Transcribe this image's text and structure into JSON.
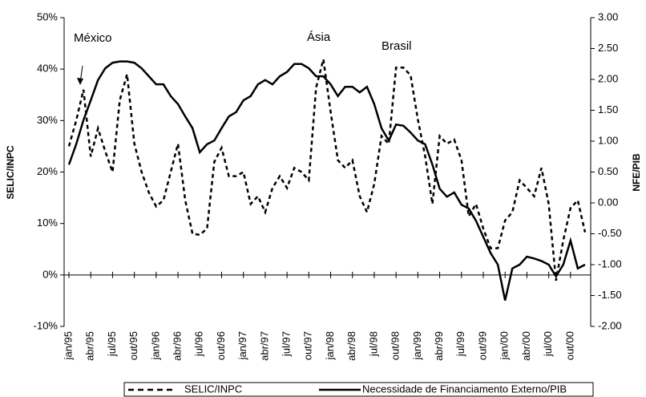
{
  "chart_data": {
    "type": "line",
    "categories": [
      "jan/95",
      null,
      null,
      "abr/95",
      null,
      null,
      "jul/95",
      null,
      null,
      "out/95",
      null,
      null,
      "jan/96",
      null,
      null,
      "abr/96",
      null,
      null,
      "jul/96",
      null,
      null,
      "out/96",
      null,
      null,
      "jan/97",
      null,
      null,
      "abr/97",
      null,
      null,
      "jul/97",
      null,
      null,
      "out/97",
      null,
      null,
      "jan/98",
      null,
      null,
      "abr/98",
      null,
      null,
      "jul/98",
      null,
      null,
      "out/98",
      null,
      null,
      "jan/99",
      null,
      null,
      "abr/99",
      null,
      null,
      "jul/99",
      null,
      null,
      "out/99",
      null,
      null,
      "jan/00",
      null,
      null,
      "abr/00",
      null,
      null,
      "jul/00",
      null,
      null,
      "out/00",
      null,
      null
    ],
    "y_label": "SELIC/INPC",
    "y2_label": "NFE/PIB",
    "ylim": [
      -10,
      50
    ],
    "yticks": [
      {
        "value": -10,
        "label": "-10%"
      },
      {
        "value": 0,
        "label": "0%"
      },
      {
        "value": 10,
        "label": "10%"
      },
      {
        "value": 20,
        "label": "20%"
      },
      {
        "value": 30,
        "label": "30%"
      },
      {
        "value": 40,
        "label": "40%"
      },
      {
        "value": 50,
        "label": "50%"
      }
    ],
    "y2lim": [
      -2,
      3
    ],
    "y2ticks": [
      {
        "value": -2,
        "label": "-2.00"
      },
      {
        "value": -1.5,
        "label": "-1.50"
      },
      {
        "value": -1,
        "label": "-1.00"
      },
      {
        "value": -0.5,
        "label": "-0.50"
      },
      {
        "value": 0,
        "label": "0.00"
      },
      {
        "value": 0.5,
        "label": "0.50"
      },
      {
        "value": 1,
        "label": "1.00"
      },
      {
        "value": 1.5,
        "label": "1.50"
      },
      {
        "value": 2,
        "label": "2.00"
      },
      {
        "value": 2.5,
        "label": "2.50"
      },
      {
        "value": 3,
        "label": "3.00"
      }
    ],
    "series": [
      {
        "name": "SELIC/INPC",
        "color": "#000000",
        "dashed": true,
        "values": [
          25,
          30,
          36,
          23,
          28.5,
          24,
          20,
          34,
          39,
          25.5,
          20,
          16,
          13.3,
          14.5,
          20,
          25.5,
          14.5,
          8,
          7.8,
          9,
          22,
          24.7,
          19.2,
          19.2,
          20,
          13.8,
          15.3,
          12.2,
          16.9,
          19.2,
          16.9,
          20.8,
          20,
          18.4,
          36.4,
          41.9,
          31.7,
          22.3,
          20.8,
          22.3,
          15.3,
          12.2,
          17.7,
          27,
          25.5,
          40.3,
          40.3,
          38.8,
          30.2,
          23.1,
          13.8,
          27,
          25.5,
          26.3,
          22.3,
          11.4,
          13.8,
          9,
          5.2,
          5.2,
          10.6,
          12.2,
          18.4,
          16.9,
          15.3,
          20.8,
          13.8,
          -1.1,
          6.7,
          13,
          14.5,
          8.3
        ]
      },
      {
        "name": "Necessidade de Financiamento Externo/PIB",
        "color": "#000000",
        "dashed": false,
        "axis": "y2",
        "values": [
          0.62,
          0.95,
          1.34,
          1.66,
          1.99,
          2.18,
          2.27,
          2.29,
          2.29,
          2.27,
          2.18,
          2.05,
          1.92,
          1.92,
          1.73,
          1.6,
          1.4,
          1.21,
          0.82,
          0.95,
          1.01,
          1.21,
          1.4,
          1.47,
          1.66,
          1.73,
          1.92,
          1.99,
          1.92,
          2.05,
          2.12,
          2.25,
          2.25,
          2.18,
          2.05,
          2.05,
          1.92,
          1.73,
          1.88,
          1.88,
          1.79,
          1.88,
          1.6,
          1.21,
          1.01,
          1.27,
          1.25,
          1.14,
          1.01,
          0.95,
          0.62,
          0.23,
          0.1,
          0.17,
          -0.03,
          -0.09,
          -0.29,
          -0.55,
          -0.81,
          -1.0,
          -1.58,
          -1.06,
          -1.0,
          -0.87,
          -0.9,
          -0.94,
          -1.0,
          -1.19,
          -1.0,
          -0.61,
          -1.06,
          -1.0
        ]
      }
    ],
    "annotations": [
      {
        "text": "México"
      },
      {
        "text": "Ásia"
      },
      {
        "text": "Brasil"
      }
    ]
  }
}
